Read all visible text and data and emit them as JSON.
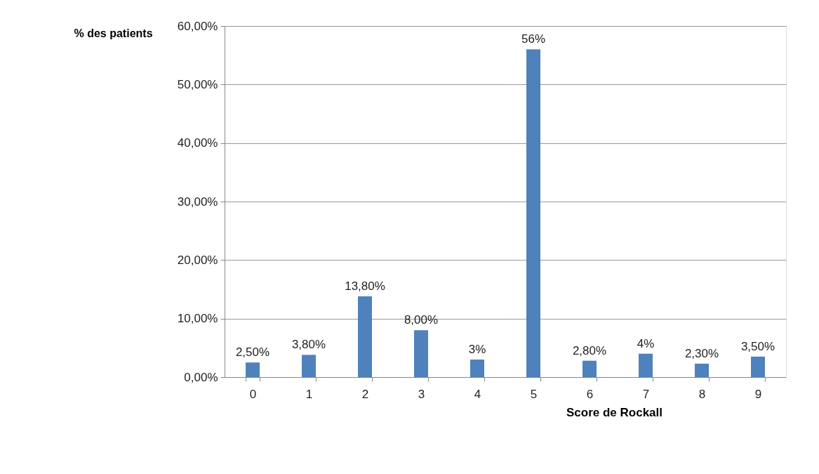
{
  "chart_data": {
    "type": "bar",
    "xlabel": "Score de Rockall",
    "ylabel": "% des patients",
    "categories": [
      "0",
      "1",
      "2",
      "3",
      "4",
      "5",
      "6",
      "7",
      "8",
      "9"
    ],
    "values": [
      2.5,
      3.8,
      13.8,
      8,
      3,
      56,
      2.8,
      4,
      2.3,
      3.5
    ],
    "value_labels": [
      "2,50%",
      "3,80%",
      "13,80%",
      "8,00%",
      "3%",
      "56%",
      "2,80%",
      "4%",
      "2,30%",
      "3,50%"
    ],
    "color": "#4f81bd",
    "ylim": [
      0,
      60
    ],
    "yticks": [
      {
        "value": 0,
        "label": "0,00%"
      },
      {
        "value": 10,
        "label": "10,00%"
      },
      {
        "value": 20,
        "label": "20,00%"
      },
      {
        "value": 30,
        "label": "30,00%"
      },
      {
        "value": 40,
        "label": "40,00%"
      },
      {
        "value": 50,
        "label": "50,00%"
      },
      {
        "value": 60,
        "label": "60,00%"
      }
    ],
    "grid": "y"
  }
}
